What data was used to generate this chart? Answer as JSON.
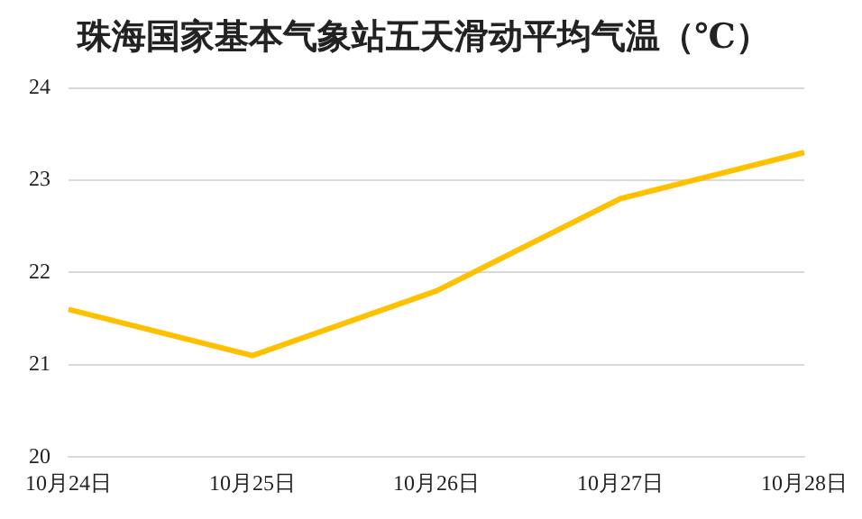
{
  "chart_data": {
    "type": "line",
    "title": "珠海国家基本气象站五天滑动平均气温（℃）",
    "categories": [
      "10月24日",
      "10月25日",
      "10月26日",
      "10月27日",
      "10月28日"
    ],
    "series": [
      {
        "color": "#ffc000",
        "values": [
          21.6,
          21.1,
          21.8,
          22.8,
          23.3
        ]
      }
    ],
    "ylim": [
      20,
      24
    ],
    "yticks": [
      20,
      21,
      22,
      23,
      24
    ],
    "grid": "y",
    "legend": false,
    "marker": "none",
    "line_style": "solid"
  }
}
